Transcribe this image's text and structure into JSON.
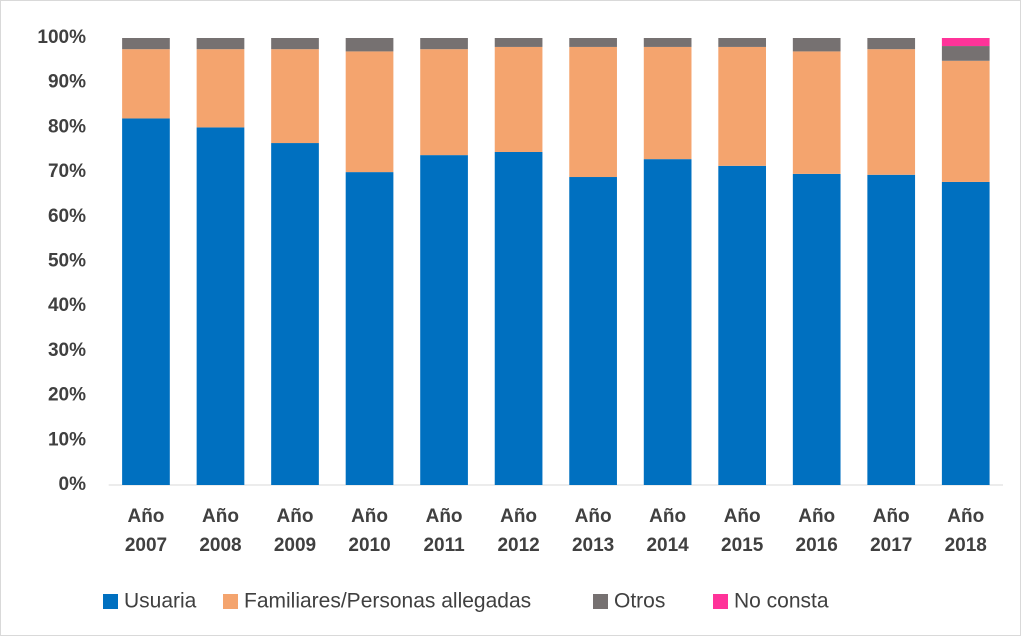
{
  "chart_data": {
    "type": "stacked_bar",
    "categories": [
      "Año 2007",
      "Año 2008",
      "Año 2009",
      "Año 2010",
      "Año 2011",
      "Año 2012",
      "Año 2013",
      "Año 2014",
      "Año 2015",
      "Año 2016",
      "Año 2017",
      "Año 2018"
    ],
    "series": [
      {
        "name": "Usuaria",
        "color": "#0070c0",
        "values": [
          82,
          80,
          76.5,
          70,
          73.8,
          74.5,
          68.9,
          72.9,
          71.4,
          69.6,
          69.4,
          67.8
        ]
      },
      {
        "name": "Familiares/Personas allegadas",
        "color": "#f4a46e",
        "values": [
          15.5,
          17.5,
          21,
          27,
          23.7,
          23.5,
          29.1,
          25.1,
          26.6,
          27.4,
          28.1,
          27.1
        ]
      },
      {
        "name": "Otros",
        "color": "#767171",
        "values": [
          2.5,
          2.5,
          2.5,
          3,
          2.5,
          2,
          2,
          2,
          2,
          3,
          2.5,
          3.3
        ]
      },
      {
        "name": "No consta",
        "color": "#ff3399",
        "values": [
          0,
          0,
          0,
          0,
          0,
          0,
          0,
          0,
          0,
          0,
          0,
          1.8
        ]
      }
    ],
    "ylim": [
      0,
      100
    ],
    "yticks": [
      {
        "value": 0,
        "label": "0%"
      },
      {
        "value": 10,
        "label": "10%"
      },
      {
        "value": 20,
        "label": "20%"
      },
      {
        "value": 30,
        "label": "30%"
      },
      {
        "value": 40,
        "label": "40%"
      },
      {
        "value": 50,
        "label": "50%"
      },
      {
        "value": 60,
        "label": "60%"
      },
      {
        "value": 70,
        "label": "70%"
      },
      {
        "value": 80,
        "label": "80%"
      },
      {
        "value": 90,
        "label": "90%"
      },
      {
        "value": 100,
        "label": "100%"
      }
    ],
    "grid": false,
    "legend": "bottom"
  }
}
